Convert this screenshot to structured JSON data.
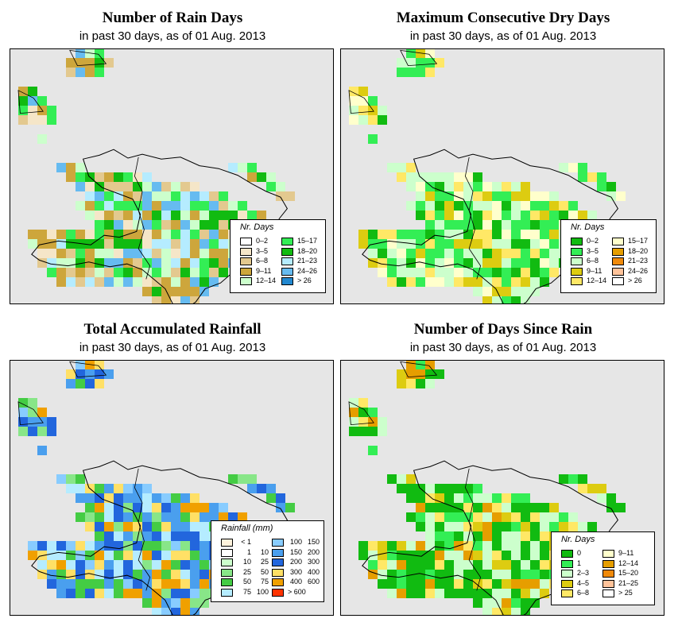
{
  "panels": [
    {
      "key": "rain_days",
      "title": "Number of Rain Days",
      "subtitle": "in past 30 days, as of  01 Aug. 2013",
      "legend": {
        "title": "Nr. Days",
        "items": [
          {
            "label": "0–2",
            "color": "#ffffff"
          },
          {
            "label": "3–5",
            "color": "#f5e6c8"
          },
          {
            "label": "6–8",
            "color": "#e3c98f"
          },
          {
            "label": "9–11",
            "color": "#cda63c"
          },
          {
            "label": "12–14",
            "color": "#ccffcc"
          },
          {
            "label": "15–17",
            "color": "#33ee55"
          },
          {
            "label": "18–20",
            "color": "#11bb11"
          },
          {
            "label": "21–23",
            "color": "#b5ecff"
          },
          {
            "label": "24–26",
            "color": "#66bbf0"
          },
          {
            "label": "> 26",
            "color": "#2288d0"
          }
        ]
      }
    },
    {
      "key": "dry_days",
      "title": "Maximum Consecutive Dry Days",
      "subtitle": "in past 30 days, as of  01 Aug. 2013",
      "legend": {
        "title": "Nr. Days",
        "items": [
          {
            "label": "0–2",
            "color": "#11bb11"
          },
          {
            "label": "3–5",
            "color": "#33ee55"
          },
          {
            "label": "6–8",
            "color": "#ccffcc"
          },
          {
            "label": "9–11",
            "color": "#ddcc11"
          },
          {
            "label": "12–14",
            "color": "#ffe866"
          },
          {
            "label": "15–17",
            "color": "#ffffcc"
          },
          {
            "label": "18–20",
            "color": "#e69e00"
          },
          {
            "label": "21–23",
            "color": "#f08a0a"
          },
          {
            "label": "24–26",
            "color": "#ffc39a"
          },
          {
            "label": "> 26",
            "color": "#ffffff"
          }
        ]
      }
    },
    {
      "key": "rainfall",
      "title": "Total Accumulated Rainfall",
      "subtitle": "in past 30 days, as of  01 Aug. 2013",
      "legend": {
        "title": "Rainfall (mm)",
        "items": [
          {
            "label_a": "< 1",
            "label_b": "",
            "color": "#fff3dd"
          },
          {
            "label_a": "1",
            "label_b": "10",
            "color": "#ffffff"
          },
          {
            "label_a": "10",
            "label_b": "25",
            "color": "#ccffcc"
          },
          {
            "label_a": "25",
            "label_b": "50",
            "color": "#88e688"
          },
          {
            "label_a": "50",
            "label_b": "75",
            "color": "#44cc44"
          },
          {
            "label_a": "75",
            "label_b": "100",
            "color": "#b5ecff"
          },
          {
            "label_a": "100",
            "label_b": "150",
            "color": "#88ccff"
          },
          {
            "label_a": "150",
            "label_b": "200",
            "color": "#4a9fee"
          },
          {
            "label_a": "200",
            "label_b": "300",
            "color": "#2266dd"
          },
          {
            "label_a": "300",
            "label_b": "400",
            "color": "#ffe066"
          },
          {
            "label_a": "400",
            "label_b": "600",
            "color": "#f0a000"
          },
          {
            "label_a": "> 600",
            "label_b": "",
            "color": "#ff3300"
          }
        ]
      }
    },
    {
      "key": "since_rain",
      "title": "Number of Days Since Rain",
      "subtitle": "in past 30 days, as of  01 Aug. 2013",
      "legend": {
        "title": "Nr. Days",
        "items": [
          {
            "label": "0",
            "color": "#11bb11"
          },
          {
            "label": "1",
            "color": "#33ee55"
          },
          {
            "label": "2–3",
            "color": "#ccffcc"
          },
          {
            "label": "4–5",
            "color": "#ddcc11"
          },
          {
            "label": "6–8",
            "color": "#ffe866"
          },
          {
            "label": "9–11",
            "color": "#ffffcc"
          },
          {
            "label": "12–14",
            "color": "#e69e00"
          },
          {
            "label": "15–20",
            "color": "#f08a0a"
          },
          {
            "label": "21–25",
            "color": "#ffc39a"
          },
          {
            "label": "> 25",
            "color": "#ffffff"
          }
        ]
      }
    }
  ]
}
